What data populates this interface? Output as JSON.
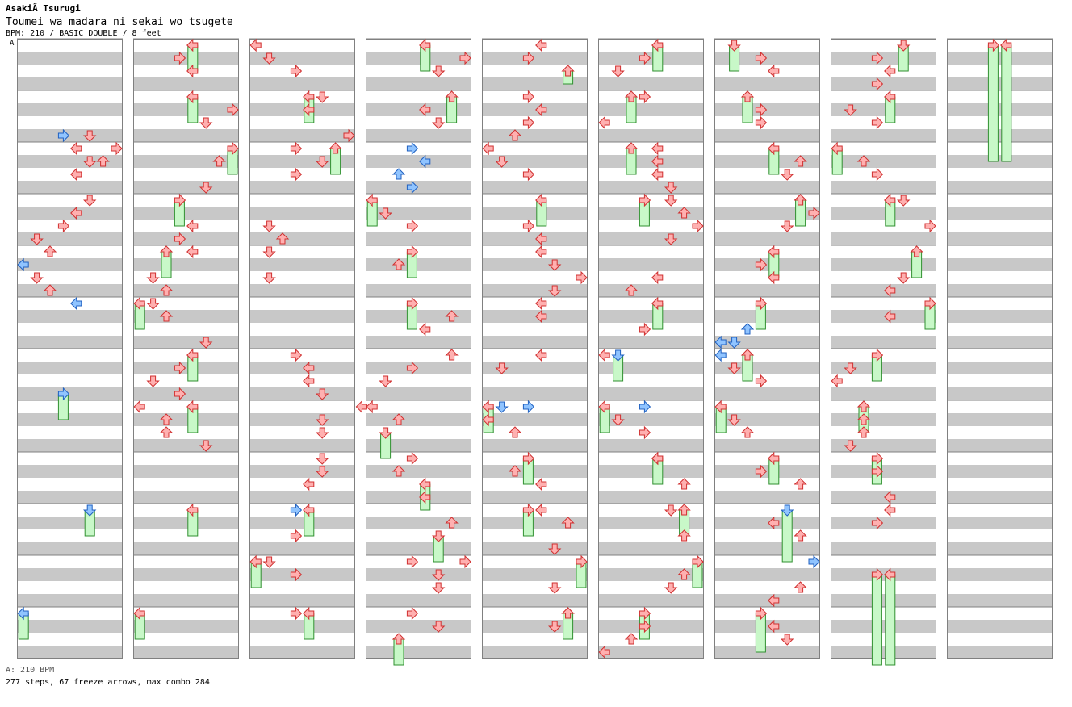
{
  "header": {
    "artist": "AsakiÃ Tsurugi",
    "title": "Toumei wa madara ni sekai wo tsugete",
    "meta": "BPM: 210 / BASIC DOUBLE / 8 feet",
    "bpm_marker": "A"
  },
  "footer": {
    "bpm_note": "A: 210 BPM",
    "stats": "277 steps, 67 freeze arrows, max combo 284"
  },
  "colors": {
    "stripe": "#c8c8c8",
    "border": "#808080",
    "note_red": "#ffb0b0",
    "note_red_stroke": "#d03030",
    "note_blue": "#90c4ff",
    "note_blue_stroke": "#2060c0",
    "freeze_fill": "#c8f8c8",
    "freeze_stroke": "#309030"
  },
  "chart_data": {
    "type": "table",
    "description_units": "columns = chart measure blocks (4 measures each), lane 0-7 = L D U R (P1) L D U R (P2), beat = quarter-beat steps within a column (0-47)",
    "lanes": [
      "left",
      "down",
      "up",
      "right",
      "left",
      "down",
      "up",
      "right"
    ],
    "columns": 9,
    "beats_per_column": 48,
    "notes": [
      [
        [
          3,
          7,
          "b"
        ],
        [
          5,
          7,
          "r"
        ],
        [
          4,
          8,
          "r"
        ],
        [
          7,
          8,
          "r"
        ],
        [
          5,
          9,
          "r"
        ],
        [
          6,
          9,
          "r"
        ],
        [
          4,
          10,
          "r"
        ],
        [
          5,
          12,
          "r"
        ],
        [
          4,
          13,
          "r"
        ],
        [
          3,
          14,
          "r"
        ],
        [
          1,
          15,
          "r"
        ],
        [
          2,
          16,
          "r"
        ],
        [
          0,
          17,
          "b"
        ],
        [
          1,
          18,
          "r"
        ],
        [
          2,
          19,
          "r"
        ],
        [
          4,
          20,
          "b"
        ]
      ],
      [
        [
          3,
          1,
          "r"
        ],
        [
          4,
          2,
          "r"
        ],
        [
          7,
          5,
          "r"
        ],
        [
          5,
          6,
          "r"
        ],
        [
          6,
          9,
          "r"
        ],
        [
          5,
          11,
          "r"
        ],
        [
          4,
          14,
          "r"
        ],
        [
          3,
          15,
          "r"
        ],
        [
          4,
          16,
          "r"
        ],
        [
          1,
          18,
          "r"
        ],
        [
          2,
          19,
          "r"
        ],
        [
          1,
          20,
          "r"
        ],
        [
          2,
          21,
          "r"
        ],
        [
          5,
          23,
          "r"
        ],
        [
          3,
          25,
          "r"
        ],
        [
          1,
          26,
          "r"
        ],
        [
          3,
          27,
          "r"
        ],
        [
          0,
          28,
          "r"
        ],
        [
          2,
          29,
          "r"
        ],
        [
          2,
          30,
          "r"
        ],
        [
          5,
          31,
          "r"
        ]
      ],
      [
        [
          0,
          0,
          "r"
        ],
        [
          1,
          1,
          "r"
        ],
        [
          3,
          2,
          "r"
        ],
        [
          5,
          4,
          "r"
        ],
        [
          4,
          5,
          "r"
        ],
        [
          7,
          7,
          "r"
        ],
        [
          3,
          8,
          "r"
        ],
        [
          5,
          9,
          "r"
        ],
        [
          3,
          10,
          "r"
        ],
        [
          1,
          14,
          "r"
        ],
        [
          2,
          15,
          "r"
        ],
        [
          1,
          16,
          "r"
        ],
        [
          1,
          18,
          "r"
        ],
        [
          3,
          24,
          "r"
        ],
        [
          4,
          25,
          "r"
        ],
        [
          4,
          26,
          "r"
        ],
        [
          5,
          27,
          "r"
        ],
        [
          8,
          28,
          "r"
        ],
        [
          5,
          29,
          "r"
        ],
        [
          5,
          30,
          "r"
        ],
        [
          5,
          32,
          "r"
        ],
        [
          5,
          33,
          "r"
        ],
        [
          4,
          34,
          "r"
        ],
        [
          3,
          36,
          "b"
        ],
        [
          3,
          38,
          "r"
        ],
        [
          1,
          40,
          "r"
        ],
        [
          3,
          41,
          "r"
        ],
        [
          3,
          44,
          "r"
        ]
      ],
      [
        [
          7,
          1,
          "r"
        ],
        [
          5,
          2,
          "r"
        ],
        [
          4,
          5,
          "r"
        ],
        [
          5,
          6,
          "r"
        ],
        [
          3,
          8,
          "b"
        ],
        [
          4,
          9,
          "b"
        ],
        [
          2,
          10,
          "b"
        ],
        [
          3,
          11,
          "b"
        ],
        [
          1,
          13,
          "r"
        ],
        [
          3,
          14,
          "r"
        ],
        [
          2,
          17,
          "r"
        ],
        [
          6,
          21,
          "r"
        ],
        [
          4,
          22,
          "r"
        ],
        [
          6,
          24,
          "r"
        ],
        [
          3,
          25,
          "r"
        ],
        [
          1,
          26,
          "r"
        ],
        [
          0,
          28,
          "r"
        ],
        [
          2,
          29,
          "r"
        ],
        [
          3,
          32,
          "r"
        ],
        [
          2,
          33,
          "r"
        ],
        [
          4,
          35,
          "r"
        ],
        [
          6,
          37,
          "r"
        ],
        [
          3,
          40,
          "r"
        ],
        [
          7,
          40,
          "r"
        ],
        [
          5,
          41,
          "r"
        ],
        [
          5,
          42,
          "r"
        ],
        [
          3,
          44,
          "r"
        ],
        [
          5,
          45,
          "r"
        ]
      ],
      [
        [
          4,
          0,
          "r"
        ],
        [
          3,
          1,
          "r"
        ],
        [
          3,
          4,
          "r"
        ],
        [
          4,
          5,
          "r"
        ],
        [
          3,
          6,
          "r"
        ],
        [
          2,
          7,
          "r"
        ],
        [
          0,
          8,
          "r"
        ],
        [
          1,
          9,
          "r"
        ],
        [
          3,
          10,
          "r"
        ],
        [
          3,
          14,
          "r"
        ],
        [
          4,
          15,
          "r"
        ],
        [
          4,
          16,
          "r"
        ],
        [
          5,
          17,
          "r"
        ],
        [
          7,
          18,
          "r"
        ],
        [
          5,
          19,
          "r"
        ],
        [
          4,
          20,
          "r"
        ],
        [
          4,
          21,
          "r"
        ],
        [
          4,
          24,
          "r"
        ],
        [
          1,
          25,
          "r"
        ],
        [
          1,
          28,
          "b"
        ],
        [
          3,
          28,
          "b"
        ],
        [
          0,
          29,
          "r"
        ],
        [
          2,
          30,
          "r"
        ],
        [
          2,
          33,
          "r"
        ],
        [
          4,
          34,
          "r"
        ],
        [
          4,
          36,
          "r"
        ],
        [
          6,
          37,
          "r"
        ],
        [
          5,
          39,
          "r"
        ],
        [
          5,
          42,
          "r"
        ],
        [
          6,
          44,
          "r"
        ],
        [
          5,
          45,
          "r"
        ]
      ],
      [
        [
          3,
          1,
          "r"
        ],
        [
          1,
          2,
          "r"
        ],
        [
          3,
          4,
          "r"
        ],
        [
          0,
          6,
          "r"
        ],
        [
          4,
          8,
          "r"
        ],
        [
          4,
          9,
          "r"
        ],
        [
          4,
          10,
          "r"
        ],
        [
          5,
          11,
          "r"
        ],
        [
          5,
          12,
          "r"
        ],
        [
          6,
          13,
          "r"
        ],
        [
          7,
          14,
          "r"
        ],
        [
          5,
          15,
          "r"
        ],
        [
          4,
          18,
          "r"
        ],
        [
          2,
          19,
          "r"
        ],
        [
          3,
          22,
          "r"
        ],
        [
          0,
          24,
          "r"
        ],
        [
          3,
          28,
          "b"
        ],
        [
          1,
          29,
          "r"
        ],
        [
          3,
          30,
          "r"
        ],
        [
          4,
          32,
          "r"
        ],
        [
          6,
          34,
          "r"
        ],
        [
          5,
          36,
          "r"
        ],
        [
          6,
          38,
          "r"
        ],
        [
          7,
          40,
          "r"
        ],
        [
          6,
          41,
          "r"
        ],
        [
          5,
          42,
          "r"
        ],
        [
          3,
          45,
          "r"
        ],
        [
          2,
          46,
          "r"
        ],
        [
          0,
          47,
          "r"
        ]
      ],
      [
        [
          3,
          1,
          "r"
        ],
        [
          4,
          2,
          "r"
        ],
        [
          3,
          5,
          "r"
        ],
        [
          3,
          6,
          "r"
        ],
        [
          6,
          9,
          "r"
        ],
        [
          5,
          10,
          "r"
        ],
        [
          6,
          12,
          "r"
        ],
        [
          7,
          13,
          "r"
        ],
        [
          5,
          14,
          "r"
        ],
        [
          3,
          17,
          "r"
        ],
        [
          4,
          18,
          "r"
        ],
        [
          2,
          22,
          "b"
        ],
        [
          0,
          23,
          "b"
        ],
        [
          1,
          23,
          "b"
        ],
        [
          0,
          24,
          "b"
        ],
        [
          1,
          25,
          "r"
        ],
        [
          3,
          26,
          "r"
        ],
        [
          1,
          29,
          "r"
        ],
        [
          2,
          30,
          "r"
        ],
        [
          3,
          33,
          "r"
        ],
        [
          6,
          34,
          "r"
        ],
        [
          4,
          37,
          "r"
        ],
        [
          6,
          38,
          "r"
        ],
        [
          7,
          40,
          "b"
        ],
        [
          6,
          42,
          "r"
        ],
        [
          4,
          43,
          "r"
        ],
        [
          4,
          45,
          "r"
        ],
        [
          5,
          46,
          "r"
        ]
      ],
      [
        [
          3,
          1,
          "r"
        ],
        [
          4,
          2,
          "r"
        ],
        [
          3,
          3,
          "r"
        ],
        [
          1,
          5,
          "r"
        ],
        [
          3,
          6,
          "r"
        ],
        [
          2,
          9,
          "r"
        ],
        [
          3,
          10,
          "r"
        ],
        [
          5,
          12,
          "r"
        ],
        [
          7,
          14,
          "r"
        ],
        [
          5,
          18,
          "r"
        ],
        [
          4,
          19,
          "r"
        ],
        [
          4,
          21,
          "r"
        ],
        [
          1,
          25,
          "r"
        ],
        [
          0,
          26,
          "r"
        ],
        [
          2,
          29,
          "r"
        ],
        [
          2,
          30,
          "r"
        ],
        [
          1,
          31,
          "r"
        ],
        [
          3,
          33,
          "r"
        ],
        [
          4,
          35,
          "r"
        ],
        [
          4,
          36,
          "r"
        ],
        [
          3,
          37,
          "r"
        ]
      ],
      []
    ],
    "freezes": [
      [
        [
          3,
          27,
          29,
          "b"
        ],
        [
          5,
          36,
          38,
          "b"
        ],
        [
          0,
          44,
          46,
          "b"
        ]
      ],
      [
        [
          4,
          0,
          2,
          "r"
        ],
        [
          4,
          4,
          6,
          "r"
        ],
        [
          7,
          8,
          10,
          "r"
        ],
        [
          3,
          12,
          14,
          "r"
        ],
        [
          2,
          16,
          18,
          "r"
        ],
        [
          0,
          20,
          22,
          "r"
        ],
        [
          4,
          24,
          26,
          "r"
        ],
        [
          4,
          28,
          30,
          "r"
        ],
        [
          4,
          36,
          38,
          "r"
        ],
        [
          0,
          44,
          46,
          "r"
        ]
      ],
      [
        [
          4,
          4,
          6,
          "r"
        ],
        [
          6,
          8,
          10,
          "r"
        ],
        [
          4,
          36,
          38,
          "r"
        ],
        [
          0,
          40,
          42,
          "r"
        ],
        [
          4,
          44,
          46,
          "r"
        ]
      ],
      [
        [
          4,
          0,
          2,
          "r"
        ],
        [
          6,
          4,
          6,
          "r"
        ],
        [
          0,
          12,
          14,
          "r"
        ],
        [
          3,
          16,
          18,
          "r"
        ],
        [
          3,
          20,
          22,
          "r"
        ],
        [
          1,
          30,
          32,
          "r"
        ],
        [
          4,
          34,
          36,
          "r"
        ],
        [
          5,
          38,
          40,
          "r"
        ],
        [
          2,
          46,
          48,
          "r"
        ]
      ],
      [
        [
          6,
          2,
          3,
          "r"
        ],
        [
          4,
          12,
          14,
          "r"
        ],
        [
          0,
          28,
          30,
          "r"
        ],
        [
          3,
          32,
          34,
          "r"
        ],
        [
          3,
          36,
          38,
          "r"
        ],
        [
          7,
          40,
          42,
          "r"
        ],
        [
          6,
          44,
          46,
          "r"
        ]
      ],
      [
        [
          4,
          0,
          2,
          "r"
        ],
        [
          2,
          4,
          6,
          "r"
        ],
        [
          2,
          8,
          10,
          "r"
        ],
        [
          3,
          12,
          14,
          "r"
        ],
        [
          4,
          20,
          22,
          "r"
        ],
        [
          1,
          24,
          26,
          "b"
        ],
        [
          0,
          28,
          30,
          "r"
        ],
        [
          4,
          32,
          34,
          "r"
        ],
        [
          6,
          36,
          38,
          "r"
        ],
        [
          7,
          40,
          42,
          "r"
        ],
        [
          3,
          44,
          46,
          "r"
        ]
      ],
      [
        [
          1,
          0,
          2,
          "r"
        ],
        [
          2,
          4,
          6,
          "r"
        ],
        [
          4,
          8,
          10,
          "r"
        ],
        [
          6,
          12,
          14,
          "r"
        ],
        [
          4,
          16,
          18,
          "r"
        ],
        [
          3,
          20,
          22,
          "r"
        ],
        [
          2,
          24,
          26,
          "r"
        ],
        [
          0,
          28,
          30,
          "r"
        ],
        [
          4,
          32,
          34,
          "r"
        ],
        [
          5,
          36,
          40,
          "b"
        ],
        [
          3,
          44,
          47,
          "r"
        ]
      ],
      [
        [
          5,
          0,
          2,
          "r"
        ],
        [
          4,
          4,
          6,
          "r"
        ],
        [
          0,
          8,
          10,
          "r"
        ],
        [
          4,
          12,
          14,
          "r"
        ],
        [
          6,
          16,
          18,
          "r"
        ],
        [
          7,
          20,
          22,
          "r"
        ],
        [
          3,
          24,
          26,
          "r"
        ],
        [
          2,
          28,
          30,
          "r"
        ],
        [
          3,
          32,
          34,
          "r"
        ],
        [
          3,
          41,
          48,
          "r"
        ],
        [
          4,
          41,
          48,
          "r"
        ]
      ],
      [
        [
          3,
          0,
          9,
          "r"
        ],
        [
          4,
          0,
          9,
          "r"
        ]
      ]
    ]
  }
}
